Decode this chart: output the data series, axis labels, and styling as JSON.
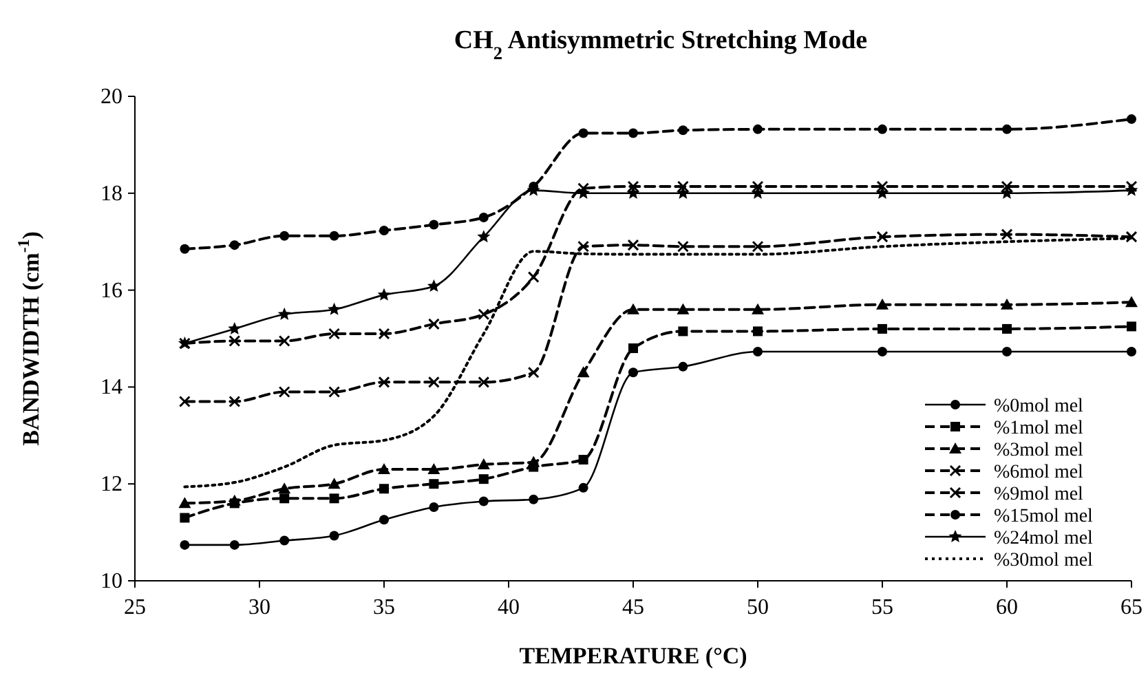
{
  "chart_data": {
    "type": "line",
    "title": "CH$_{2}$ Antisymmetric Stretching Mode",
    "xlabel": "TEMPERATURE (°C)",
    "ylabel": "BANDWIDTH (cm$^{-1}$)",
    "x": [
      27,
      29,
      31,
      33,
      35,
      37,
      39,
      41,
      43,
      45,
      47,
      50,
      55,
      60,
      65
    ],
    "xlim": [
      25,
      65
    ],
    "xticks": [
      25,
      30,
      35,
      40,
      45,
      50,
      55,
      60,
      65
    ],
    "ylim": [
      10,
      20
    ],
    "yticks": [
      10,
      12,
      14,
      16,
      18,
      20
    ],
    "grid": false,
    "legend": "bottom right",
    "series": [
      {
        "name": "%0mol mel",
        "color": "#000000",
        "marker": "circle",
        "line_style": "solid",
        "values": [
          10.74,
          10.74,
          10.83,
          10.93,
          11.26,
          11.52,
          11.64,
          11.68,
          11.92,
          14.3,
          14.42,
          14.73,
          14.73,
          14.73,
          14.73
        ]
      },
      {
        "name": "%1mol mel",
        "color": "#000000",
        "marker": "square",
        "line_style": "dashed",
        "values": [
          11.3,
          11.6,
          11.7,
          11.7,
          11.9,
          12.0,
          12.1,
          12.35,
          12.5,
          14.8,
          15.15,
          15.15,
          15.2,
          15.2,
          15.25
        ]
      },
      {
        "name": "%3mol mel",
        "color": "#000000",
        "marker": "triangle",
        "line_style": "dashed",
        "values": [
          11.6,
          11.65,
          11.9,
          12.0,
          12.3,
          12.3,
          12.4,
          12.45,
          14.3,
          15.6,
          15.6,
          15.6,
          15.7,
          15.7,
          15.75
        ]
      },
      {
        "name": "%6mol mel",
        "color": "#000000",
        "marker": "cross",
        "line_style": "dashed",
        "values": [
          13.7,
          13.7,
          13.9,
          13.9,
          14.1,
          14.1,
          14.1,
          14.3,
          16.9,
          16.93,
          16.9,
          16.9,
          17.1,
          17.15,
          17.1
        ]
      },
      {
        "name": "%9mol mel",
        "color": "#000000",
        "marker": "cross",
        "line_style": "dashed",
        "values": [
          14.9,
          14.95,
          14.95,
          15.1,
          15.1,
          15.3,
          15.5,
          16.27,
          18.1,
          18.14,
          18.14,
          18.14,
          18.14,
          18.14,
          18.14
        ]
      },
      {
        "name": "%15mol mel",
        "color": "#000000",
        "marker": "circle",
        "line_style": "dashed",
        "values": [
          16.85,
          16.93,
          17.12,
          17.12,
          17.23,
          17.35,
          17.5,
          18.14,
          19.24,
          19.24,
          19.3,
          19.32,
          19.32,
          19.32,
          19.53
        ]
      },
      {
        "name": "%24mol mel",
        "color": "#000000",
        "marker": "star",
        "line_style": "solid",
        "values": [
          14.9,
          15.2,
          15.5,
          15.6,
          15.9,
          16.08,
          17.1,
          18.06,
          18.0,
          18.0,
          18.0,
          18.0,
          18.0,
          18.0,
          18.06
        ]
      },
      {
        "name": "%30mol mel",
        "color": "#000000",
        "marker": "none",
        "line_style": "dotted",
        "values": [
          11.94,
          12.03,
          12.35,
          12.8,
          12.9,
          13.4,
          15.1,
          16.8,
          16.75,
          16.74,
          16.74,
          16.74,
          16.9,
          17.0,
          17.07
        ]
      }
    ]
  }
}
